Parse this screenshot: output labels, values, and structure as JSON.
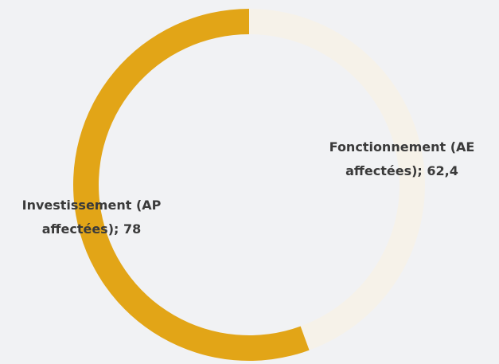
{
  "chart_data": {
    "type": "donut",
    "categories": [
      "Fonctionnement (AE affectées)",
      "Investissement (AP affectées)"
    ],
    "values": [
      62.4,
      78
    ],
    "value_labels": [
      "62,4",
      "78"
    ],
    "colors": [
      "#f6f2e9",
      "#e2a517"
    ]
  }
}
